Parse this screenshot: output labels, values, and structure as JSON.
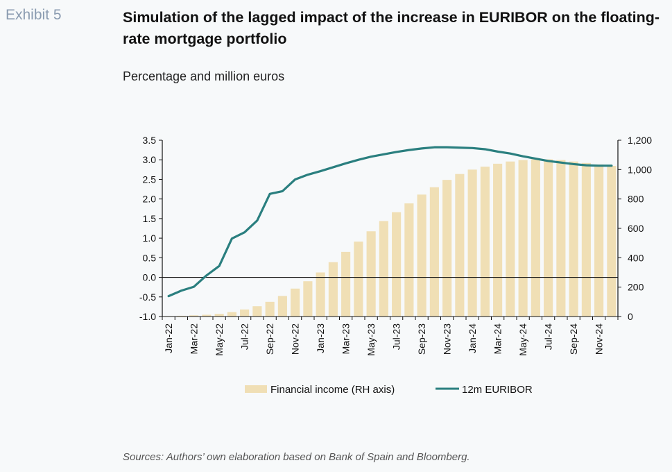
{
  "header": {
    "exhibit": "Exhibit 5",
    "title": "Simulation of the lagged impact of the increase in EURIBOR on the floating-rate mortgage portfolio",
    "subtitle": "Percentage and million euros"
  },
  "footer": {
    "source": "Sources: Authors’ own elaboration based on Bank of Spain and Bloomberg."
  },
  "colors": {
    "bars": "#f0dfb5",
    "line": "#2a7f7f",
    "axis": "#111111"
  },
  "chart_data": {
    "type": "bar",
    "x": [
      "Jan-22",
      "Feb-22",
      "Mar-22",
      "Apr-22",
      "May-22",
      "Jun-22",
      "Jul-22",
      "Aug-22",
      "Sep-22",
      "Oct-22",
      "Nov-22",
      "Dec-22",
      "Jan-23",
      "Feb-23",
      "Mar-23",
      "Apr-23",
      "May-23",
      "Jun-23",
      "Jul-23",
      "Aug-23",
      "Sep-23",
      "Oct-23",
      "Nov-23",
      "Dec-23",
      "Jan-24",
      "Feb-24",
      "Mar-24",
      "Apr-24",
      "May-24",
      "Jun-24",
      "Jul-24",
      "Aug-24",
      "Sep-24",
      "Oct-24",
      "Nov-24",
      "Dec-24"
    ],
    "x_tick_labels": [
      "Jan-22",
      "Mar-22",
      "May-22",
      "Jul-22",
      "Sep-22",
      "Nov-22",
      "Jan-23",
      "Mar-23",
      "May-23",
      "Jul-23",
      "Sep-23",
      "Nov-23",
      "Jan-24",
      "Mar-24",
      "May-24",
      "Jul-24",
      "Sep-24",
      "Nov-24"
    ],
    "series": [
      {
        "name": "Financial income (RH axis)",
        "type": "bar",
        "axis": "right",
        "values": [
          3,
          5,
          8,
          12,
          18,
          30,
          48,
          70,
          100,
          140,
          190,
          240,
          300,
          370,
          440,
          510,
          580,
          650,
          710,
          770,
          830,
          880,
          930,
          970,
          1000,
          1020,
          1040,
          1055,
          1065,
          1070,
          1070,
          1065,
          1055,
          1045,
          1035,
          1025
        ]
      },
      {
        "name": "12m EURIBOR",
        "type": "line",
        "axis": "left",
        "values": [
          -0.48,
          -0.34,
          -0.24,
          0.05,
          0.29,
          0.99,
          1.15,
          1.45,
          2.13,
          2.2,
          2.5,
          2.62,
          2.71,
          2.81,
          2.91,
          3.0,
          3.08,
          3.14,
          3.2,
          3.25,
          3.29,
          3.32,
          3.32,
          3.31,
          3.3,
          3.27,
          3.21,
          3.16,
          3.09,
          3.03,
          2.97,
          2.93,
          2.89,
          2.86,
          2.85,
          2.85
        ]
      }
    ],
    "y_left": {
      "min": -1.0,
      "max": 3.5,
      "ticks": [
        "-1.0",
        "-0.5",
        "0.0",
        "0.5",
        "1.0",
        "1.5",
        "2.0",
        "2.5",
        "3.0",
        "3.5"
      ]
    },
    "y_right": {
      "min": 0,
      "max": 1200,
      "ticks": [
        "0",
        "200",
        "400",
        "600",
        "800",
        "1,000",
        "1,200"
      ]
    },
    "legend_position": "bottom",
    "grid": false
  }
}
